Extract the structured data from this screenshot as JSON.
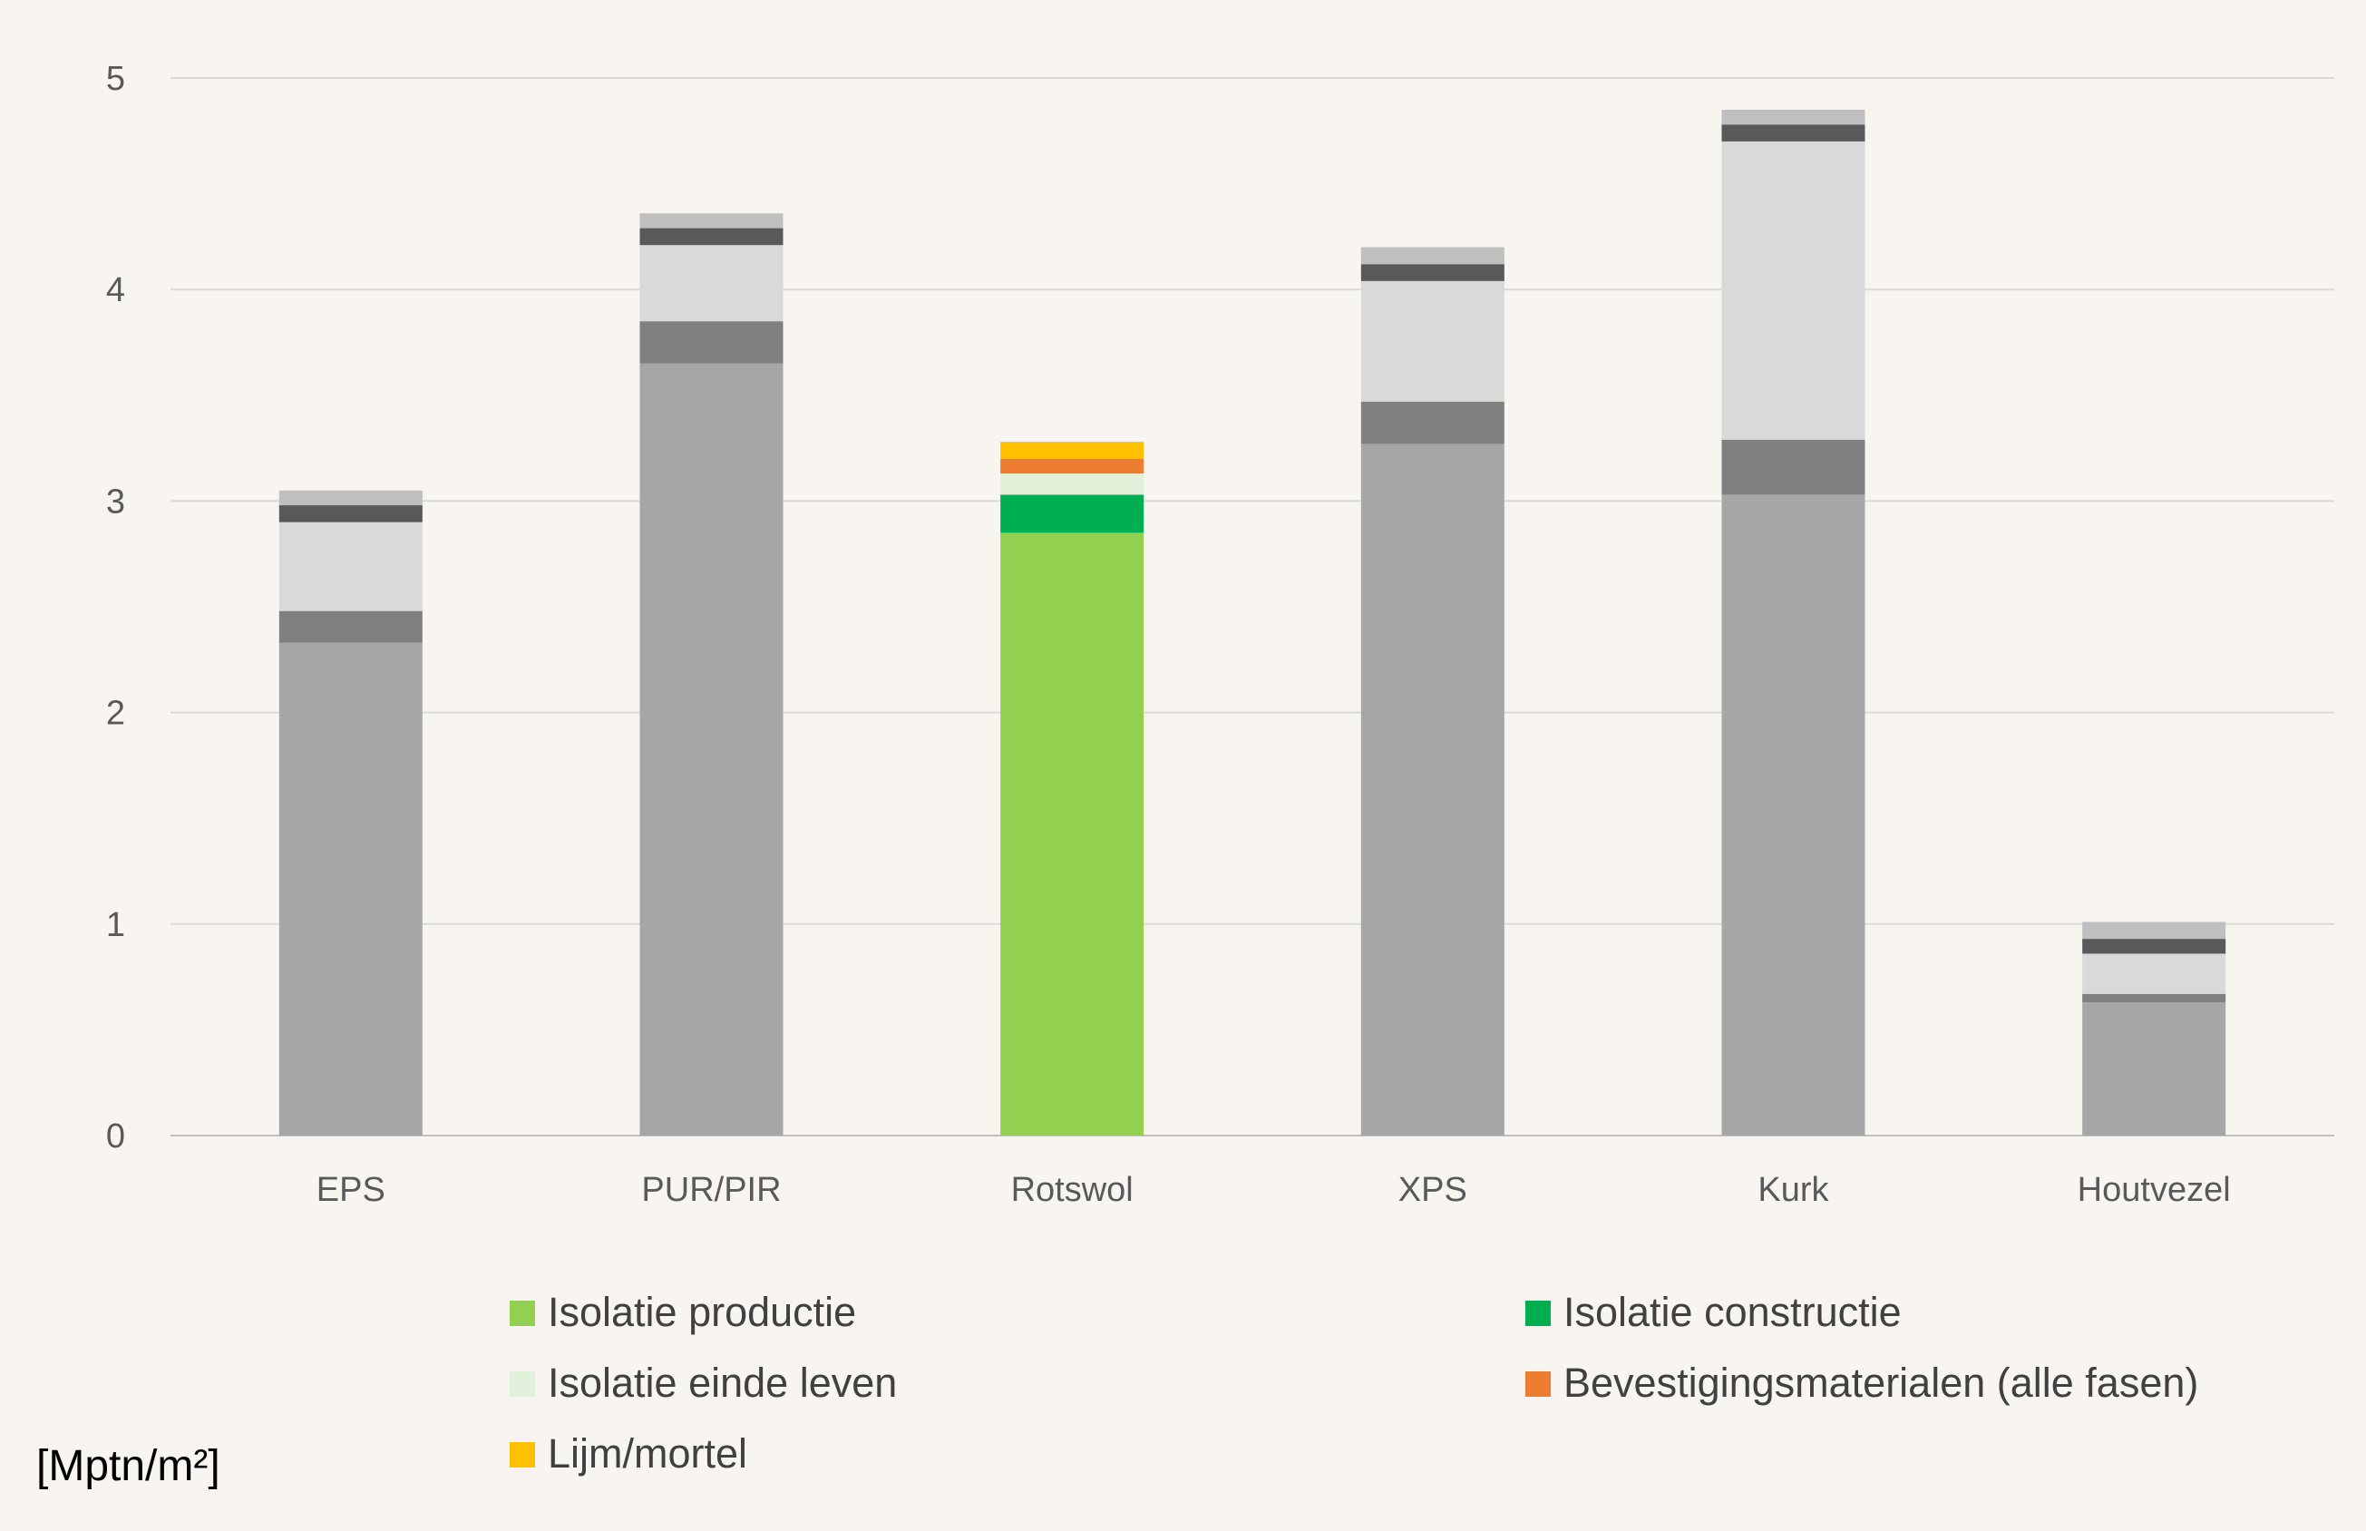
{
  "chart_data": {
    "type": "bar",
    "stacked": true,
    "title": "",
    "xlabel": "",
    "ylabel": "",
    "unit_label": "[Mptn/m²]",
    "ylim": [
      0,
      5
    ],
    "yticks": [
      0,
      1,
      2,
      3,
      4,
      5
    ],
    "grid": true,
    "legend_position": "bottom",
    "categories": [
      "EPS",
      "PUR/PIR",
      "Rotswol",
      "XPS",
      "Kurk",
      "Houtvezel"
    ],
    "highlight_category": "Rotswol",
    "series": [
      {
        "name": "Isolatie productie",
        "color": "#92d050",
        "muted_color": "#a6a6a6",
        "values": [
          2.33,
          3.65,
          2.85,
          3.27,
          3.03,
          0.63
        ]
      },
      {
        "name": "Isolatie constructie",
        "color": "#00b050",
        "muted_color": "#808080",
        "values": [
          0.15,
          0.2,
          0.18,
          0.2,
          0.26,
          0.04
        ]
      },
      {
        "name": "Isolatie einde leven",
        "color": "#e2f0d9",
        "muted_color": "#d9d9d9",
        "values": [
          0.42,
          0.36,
          0.1,
          0.57,
          1.41,
          0.19
        ]
      },
      {
        "name": "Bevestigingsmaterialen (alle fasen)",
        "color": "#ed7d31",
        "muted_color": "#595959",
        "values": [
          0.08,
          0.08,
          0.07,
          0.08,
          0.08,
          0.07
        ]
      },
      {
        "name": "Lijm/mortel",
        "color": "#ffc000",
        "muted_color": "#bfbfbf",
        "values": [
          0.07,
          0.07,
          0.08,
          0.08,
          0.07,
          0.08
        ]
      }
    ]
  }
}
